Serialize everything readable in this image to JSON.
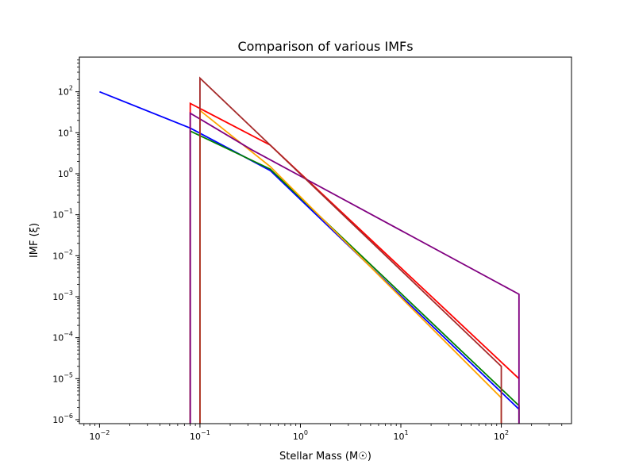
{
  "chart_data": {
    "type": "line",
    "title": "Comparison of various IMFs",
    "xlabel": "Stellar Mass (M☉)",
    "ylabel": "IMF (ξ)",
    "xscale": "log",
    "yscale": "log",
    "xlim": [
      0.0063,
      500
    ],
    "ylim": [
      8e-07,
      700
    ],
    "grid": false,
    "legend": "none",
    "x_ticks": [
      {
        "value": 0.01,
        "mant": "10",
        "exp": "−2"
      },
      {
        "value": 0.1,
        "mant": "10",
        "exp": "−1"
      },
      {
        "value": 1,
        "mant": "10",
        "exp": "0"
      },
      {
        "value": 10,
        "mant": "10",
        "exp": "1"
      },
      {
        "value": 100,
        "mant": "10",
        "exp": "2"
      }
    ],
    "y_ticks": [
      {
        "value": 100,
        "mant": "10",
        "exp": "2"
      },
      {
        "value": 10,
        "mant": "10",
        "exp": "1"
      },
      {
        "value": 1,
        "mant": "10",
        "exp": "0"
      },
      {
        "value": 0.1,
        "mant": "10",
        "exp": "−1"
      },
      {
        "value": 0.01,
        "mant": "10",
        "exp": "−2"
      },
      {
        "value": 0.001,
        "mant": "10",
        "exp": "−3"
      },
      {
        "value": 0.0001,
        "mant": "10",
        "exp": "−4"
      },
      {
        "value": 1e-05,
        "mant": "10",
        "exp": "−5"
      },
      {
        "value": 1e-06,
        "mant": "10",
        "exp": "−6"
      }
    ],
    "series": [
      {
        "color": "#0000ff",
        "x": [
          0.01,
          0.08,
          0.5,
          150
        ],
        "y": [
          100,
          13.0,
          1.2,
          1.8e-06
        ]
      },
      {
        "color": "#008000",
        "x": [
          0.08,
          0.08,
          0.5,
          150,
          150
        ],
        "y": [
          1e-07,
          11.0,
          1.3,
          2.2e-06,
          1e-07
        ]
      },
      {
        "color": "#ff0000",
        "x": [
          0.08,
          0.08,
          0.5,
          150
        ],
        "y": [
          1e-07,
          52,
          5.0,
          1e-05
        ]
      },
      {
        "color": "#ffa500",
        "x": [
          0.1,
          0.1,
          0.5,
          100,
          100
        ],
        "y": [
          1e-07,
          35,
          1.5,
          3.4e-06,
          1e-07
        ]
      },
      {
        "color": "#800080",
        "x": [
          0.08,
          0.08,
          0.33,
          150,
          150
        ],
        "y": [
          1e-07,
          30,
          3.8,
          0.00115,
          1e-07
        ]
      },
      {
        "color": "#a52a2a",
        "x": [
          0.1,
          0.1,
          0.5,
          100,
          100
        ],
        "y": [
          1e-07,
          215,
          5.0,
          2e-05,
          1e-07
        ]
      }
    ]
  }
}
